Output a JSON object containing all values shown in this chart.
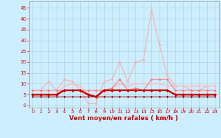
{
  "x": [
    0,
    1,
    2,
    3,
    4,
    5,
    6,
    7,
    8,
    9,
    10,
    11,
    12,
    13,
    14,
    15,
    16,
    17,
    18,
    19,
    20,
    21,
    22,
    23
  ],
  "series": [
    {
      "name": "rafales_max",
      "color": "#ffaaaa",
      "linewidth": 0.8,
      "markersize": 2.0,
      "zorder": 2,
      "values": [
        7,
        7,
        11,
        7,
        12,
        11,
        7,
        1,
        1,
        11,
        12,
        20,
        11,
        20,
        21,
        44,
        28,
        14,
        9,
        9,
        7,
        7,
        9,
        9
      ]
    },
    {
      "name": "rafales_mid",
      "color": "#ff7777",
      "linewidth": 0.8,
      "markersize": 2.0,
      "zorder": 3,
      "values": [
        7,
        7,
        7,
        7,
        7,
        7,
        7,
        7,
        7,
        7,
        8,
        12,
        7,
        8,
        7,
        12,
        12,
        12,
        7,
        7,
        7,
        7,
        7,
        7
      ]
    },
    {
      "name": "vent_moyen_light",
      "color": "#ffbbbb",
      "linewidth": 1.0,
      "markersize": 2.0,
      "zorder": 2,
      "values": [
        5,
        5,
        5,
        5,
        9,
        10,
        9,
        5,
        4,
        4,
        8,
        10,
        9,
        10,
        10,
        10,
        10,
        9,
        9,
        9,
        9,
        9,
        9,
        9
      ]
    },
    {
      "name": "vent_moyen_dark",
      "color": "#cc0000",
      "linewidth": 1.8,
      "markersize": 2.5,
      "zorder": 5,
      "values": [
        5,
        5,
        5,
        5,
        7,
        7,
        7,
        5,
        4,
        7,
        7,
        7,
        7,
        7,
        7,
        7,
        7,
        7,
        5,
        5,
        5,
        5,
        5,
        5
      ]
    },
    {
      "name": "vent_min",
      "color": "#990000",
      "linewidth": 0.8,
      "markersize": 1.8,
      "zorder": 4,
      "values": [
        4,
        4,
        4,
        4,
        4,
        4,
        4,
        4,
        4,
        4,
        4,
        4,
        4,
        4,
        4,
        4,
        4,
        4,
        4,
        4,
        4,
        4,
        4,
        4
      ]
    }
  ],
  "xlabel": "Vent moyen/en rafales ( km/h )",
  "xlim": [
    -0.5,
    23.5
  ],
  "ylim": [
    -1,
    48
  ],
  "yticks": [
    0,
    5,
    10,
    15,
    20,
    25,
    30,
    35,
    40,
    45
  ],
  "xticks": [
    0,
    1,
    2,
    3,
    4,
    5,
    6,
    7,
    8,
    9,
    10,
    11,
    12,
    13,
    14,
    15,
    16,
    17,
    18,
    19,
    20,
    21,
    22,
    23
  ],
  "bg_color": "#cceeff",
  "grid_color": "#aacccc",
  "tick_color": "#cc0000",
  "label_color": "#cc0000",
  "tick_fontsize": 5.0,
  "label_fontsize": 6.5
}
